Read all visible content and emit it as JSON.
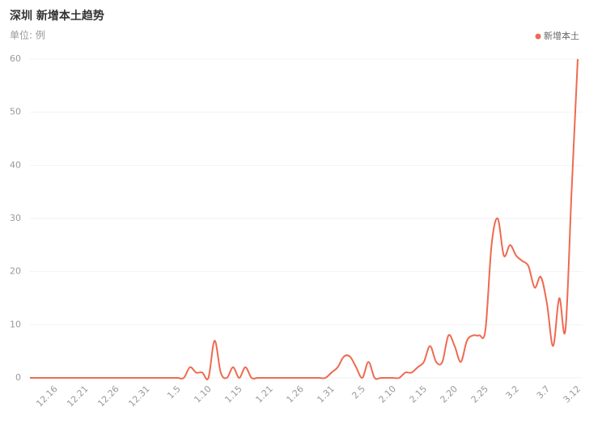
{
  "chart_data": {
    "type": "line",
    "title": "深圳 新增本土趋势",
    "subtitle": "单位: 例",
    "categories": [
      null,
      null,
      null,
      null,
      "12.16",
      null,
      null,
      null,
      null,
      "12.21",
      null,
      null,
      null,
      null,
      "12.26",
      null,
      null,
      null,
      null,
      "12.31",
      null,
      null,
      null,
      null,
      "1.5",
      null,
      null,
      null,
      null,
      "1.10",
      null,
      null,
      null,
      null,
      "1.15",
      null,
      null,
      null,
      null,
      "1.21",
      null,
      null,
      null,
      null,
      "1.26",
      null,
      null,
      null,
      null,
      "1.31",
      null,
      null,
      null,
      null,
      "2.5",
      null,
      null,
      null,
      null,
      "2.10",
      null,
      null,
      null,
      null,
      "2.15",
      null,
      null,
      null,
      null,
      "2.20",
      null,
      null,
      null,
      null,
      "2.25",
      null,
      null,
      null,
      null,
      "3.2",
      null,
      null,
      null,
      null,
      "3.7",
      null,
      null,
      null,
      null,
      "3.12"
    ],
    "series": [
      {
        "name": "新增本土",
        "color": "#ee6a50",
        "values": [
          0,
          0,
          0,
          0,
          0,
          0,
          0,
          0,
          0,
          0,
          0,
          0,
          0,
          0,
          0,
          0,
          0,
          0,
          0,
          0,
          0,
          0,
          0,
          0,
          0,
          0,
          2,
          1,
          1,
          0,
          7,
          1,
          0,
          2,
          0,
          2,
          0,
          0,
          0,
          0,
          0,
          0,
          0,
          0,
          0,
          0,
          0,
          0,
          0,
          1,
          2,
          4,
          4,
          2,
          0,
          3,
          0,
          0,
          0,
          0,
          0,
          1,
          1,
          2,
          3,
          6,
          3,
          3,
          8,
          6,
          3,
          7,
          8,
          8,
          9,
          25,
          30,
          23,
          25,
          23,
          22,
          21,
          17,
          19,
          14,
          6,
          15,
          9,
          35,
          60
        ]
      }
    ],
    "ylim": [
      0,
      60
    ],
    "yticks": [
      0,
      10,
      20,
      30,
      40,
      50,
      60
    ],
    "grid": true,
    "legend": "top-right"
  }
}
